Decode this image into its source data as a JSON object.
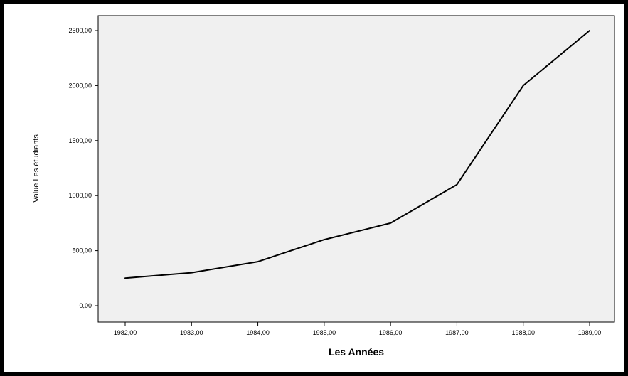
{
  "colors": {
    "frame": "#000000",
    "page_background": "#ffffff",
    "plot_background": "#f0f0f0",
    "line": "#000000"
  },
  "chart_data": {
    "type": "line",
    "title": "",
    "xlabel": "Les Années",
    "ylabel": "Value Les étudiants",
    "x": [
      1982,
      1983,
      1984,
      1985,
      1986,
      1987,
      1988,
      1989
    ],
    "x_tick_labels": [
      "1982,00",
      "1983,00",
      "1984,00",
      "1985,00",
      "1986,00",
      "1987,00",
      "1988,00",
      "1989,00"
    ],
    "y_ticks": [
      0,
      500,
      1000,
      1500,
      2000,
      2500
    ],
    "y_tick_labels": [
      "0,00",
      "500,00",
      "1000,00",
      "1500,00",
      "2000,00",
      "2500,00"
    ],
    "series": [
      {
        "values": [
          250,
          300,
          400,
          600,
          750,
          1100,
          2000,
          2500
        ]
      }
    ],
    "xlim": [
      1982,
      1989
    ],
    "ylim": [
      0,
      2500
    ],
    "grid": false,
    "legend": "none"
  }
}
